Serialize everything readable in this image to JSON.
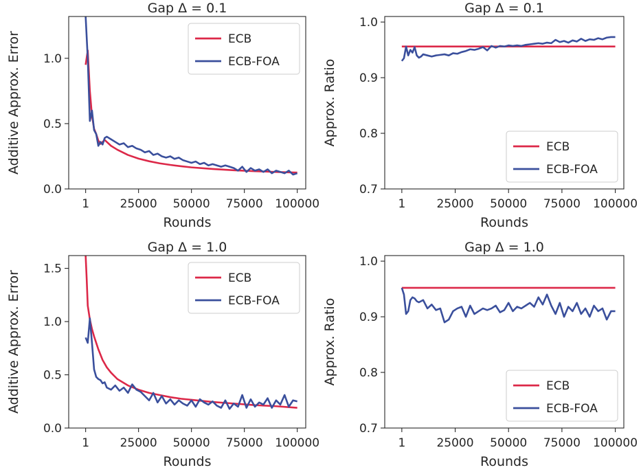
{
  "colors": {
    "ecb": "#dc2848",
    "ecb_foa": "#3a4f9c",
    "axis": "#262626"
  },
  "chart_data": [
    {
      "type": "line",
      "title": "Gap Δ = 0.1",
      "xlabel": "Rounds",
      "ylabel": "Additive Approx. Error",
      "xlim": [
        -8000,
        104000
      ],
      "ylim": [
        0,
        1.32
      ],
      "xticks": [
        1,
        25000,
        50000,
        75000,
        100000
      ],
      "xtick_labels": [
        "1",
        "25000",
        "50000",
        "75000",
        "100000"
      ],
      "yticks": [
        0.0,
        0.5,
        1.0
      ],
      "ytick_labels": [
        "0.0",
        "0.5",
        "1.0"
      ],
      "legend_position": "top-right",
      "series": [
        {
          "name": "ECB",
          "color": "#dc2848",
          "x": [
            1,
            1000,
            2000,
            3000,
            4000,
            5000,
            6000,
            7000,
            8000,
            9000,
            10000,
            12000,
            15000,
            20000,
            25000,
            30000,
            35000,
            40000,
            45000,
            50000,
            60000,
            70000,
            80000,
            90000,
            100000
          ],
          "y": [
            0.95,
            1.06,
            0.75,
            0.56,
            0.46,
            0.42,
            0.37,
            0.345,
            0.36,
            0.375,
            0.36,
            0.33,
            0.3,
            0.26,
            0.232,
            0.212,
            0.196,
            0.184,
            0.174,
            0.165,
            0.153,
            0.143,
            0.136,
            0.13,
            0.125
          ]
        },
        {
          "name": "ECB-FOA",
          "color": "#3a4f9c",
          "x": [
            1,
            1000,
            2000,
            3000,
            4000,
            5000,
            6000,
            7000,
            8000,
            9000,
            10000,
            12000,
            14000,
            16000,
            18000,
            20000,
            22000,
            24000,
            26000,
            28000,
            30000,
            32000,
            34000,
            36000,
            38000,
            40000,
            42000,
            44000,
            46000,
            48000,
            50000,
            52000,
            54000,
            56000,
            58000,
            60000,
            62000,
            64000,
            66000,
            68000,
            70000,
            72000,
            74000,
            76000,
            78000,
            80000,
            82000,
            84000,
            86000,
            88000,
            90000,
            92000,
            94000,
            96000,
            98000,
            100000
          ],
          "y": [
            1.32,
            1.0,
            0.52,
            0.6,
            0.45,
            0.42,
            0.33,
            0.36,
            0.34,
            0.39,
            0.4,
            0.38,
            0.36,
            0.34,
            0.35,
            0.32,
            0.33,
            0.31,
            0.3,
            0.28,
            0.29,
            0.26,
            0.27,
            0.25,
            0.24,
            0.25,
            0.23,
            0.24,
            0.22,
            0.21,
            0.2,
            0.21,
            0.19,
            0.2,
            0.18,
            0.19,
            0.18,
            0.17,
            0.18,
            0.17,
            0.16,
            0.14,
            0.17,
            0.13,
            0.16,
            0.14,
            0.15,
            0.13,
            0.15,
            0.12,
            0.14,
            0.13,
            0.12,
            0.14,
            0.11,
            0.12
          ]
        }
      ]
    },
    {
      "type": "line",
      "title": "Gap Δ = 0.1",
      "xlabel": "Rounds",
      "ylabel": "Approx. Ratio",
      "xlim": [
        -8000,
        104000
      ],
      "ylim": [
        0.7,
        1.01
      ],
      "xticks": [
        1,
        25000,
        50000,
        75000,
        100000
      ],
      "xtick_labels": [
        "1",
        "25000",
        "50000",
        "75000",
        "100000"
      ],
      "yticks": [
        0.7,
        0.8,
        0.9,
        1.0
      ],
      "ytick_labels": [
        "0.7",
        "0.8",
        "0.9",
        "1.0"
      ],
      "legend_position": "bottom-right",
      "series": [
        {
          "name": "ECB",
          "color": "#dc2848",
          "x": [
            1,
            100000
          ],
          "y": [
            0.956,
            0.956
          ]
        },
        {
          "name": "ECB-FOA",
          "color": "#3a4f9c",
          "x": [
            1,
            1000,
            2000,
            3000,
            4000,
            5000,
            6000,
            7000,
            8000,
            9000,
            10000,
            12000,
            14000,
            16000,
            18000,
            20000,
            22000,
            24000,
            26000,
            28000,
            30000,
            32000,
            34000,
            36000,
            38000,
            40000,
            42000,
            44000,
            46000,
            48000,
            50000,
            52000,
            54000,
            56000,
            58000,
            60000,
            62000,
            64000,
            66000,
            68000,
            70000,
            72000,
            74000,
            76000,
            78000,
            80000,
            82000,
            84000,
            86000,
            88000,
            90000,
            92000,
            94000,
            96000,
            98000,
            100000
          ],
          "y": [
            0.93,
            0.935,
            0.956,
            0.94,
            0.95,
            0.945,
            0.955,
            0.94,
            0.936,
            0.938,
            0.942,
            0.94,
            0.938,
            0.94,
            0.941,
            0.942,
            0.94,
            0.944,
            0.943,
            0.946,
            0.948,
            0.951,
            0.95,
            0.952,
            0.955,
            0.949,
            0.957,
            0.954,
            0.957,
            0.956,
            0.958,
            0.957,
            0.958,
            0.957,
            0.959,
            0.96,
            0.961,
            0.962,
            0.961,
            0.963,
            0.962,
            0.968,
            0.964,
            0.966,
            0.963,
            0.967,
            0.965,
            0.97,
            0.966,
            0.969,
            0.968,
            0.971,
            0.969,
            0.972,
            0.973,
            0.973
          ]
        }
      ]
    },
    {
      "type": "line",
      "title": "Gap Δ = 1.0",
      "xlabel": "Rounds",
      "ylabel": "Additive Approx. Error",
      "xlim": [
        -8000,
        104000
      ],
      "ylim": [
        0,
        1.62
      ],
      "xticks": [
        1,
        25000,
        50000,
        75000,
        100000
      ],
      "xtick_labels": [
        "1",
        "25000",
        "50000",
        "75000",
        "100000"
      ],
      "yticks": [
        0.0,
        0.5,
        1.0,
        1.5
      ],
      "ytick_labels": [
        "0.0",
        "0.5",
        "1.0",
        "1.5"
      ],
      "legend_position": "top-right",
      "series": [
        {
          "name": "ECB",
          "color": "#dc2848",
          "x": [
            1,
            500,
            1000,
            2000,
            3000,
            4000,
            5000,
            6000,
            8000,
            10000,
            12000,
            15000,
            20000,
            25000,
            30000,
            35000,
            40000,
            45000,
            50000,
            60000,
            70000,
            80000,
            90000,
            100000
          ],
          "y": [
            1.62,
            1.4,
            1.15,
            1.02,
            0.93,
            0.86,
            0.8,
            0.74,
            0.64,
            0.57,
            0.52,
            0.46,
            0.4,
            0.36,
            0.33,
            0.31,
            0.29,
            0.275,
            0.265,
            0.245,
            0.23,
            0.215,
            0.205,
            0.19
          ]
        },
        {
          "name": "ECB-FOA",
          "color": "#3a4f9c",
          "x": [
            1,
            1000,
            2000,
            3000,
            4000,
            5000,
            6000,
            7000,
            8000,
            9000,
            10000,
            12000,
            14000,
            16000,
            18000,
            20000,
            22000,
            24000,
            26000,
            28000,
            30000,
            32000,
            34000,
            36000,
            38000,
            40000,
            42000,
            44000,
            46000,
            48000,
            50000,
            52000,
            54000,
            56000,
            58000,
            60000,
            62000,
            64000,
            66000,
            68000,
            70000,
            72000,
            74000,
            76000,
            78000,
            80000,
            82000,
            84000,
            86000,
            88000,
            90000,
            92000,
            94000,
            96000,
            98000,
            100000
          ],
          "y": [
            0.85,
            0.8,
            1.03,
            0.8,
            0.55,
            0.48,
            0.46,
            0.45,
            0.42,
            0.43,
            0.38,
            0.36,
            0.4,
            0.35,
            0.38,
            0.33,
            0.41,
            0.36,
            0.34,
            0.3,
            0.26,
            0.33,
            0.24,
            0.3,
            0.23,
            0.27,
            0.22,
            0.26,
            0.23,
            0.21,
            0.26,
            0.2,
            0.27,
            0.24,
            0.22,
            0.25,
            0.21,
            0.19,
            0.26,
            0.18,
            0.23,
            0.2,
            0.31,
            0.19,
            0.27,
            0.2,
            0.24,
            0.22,
            0.28,
            0.19,
            0.26,
            0.22,
            0.31,
            0.2,
            0.26,
            0.25
          ]
        }
      ]
    },
    {
      "type": "line",
      "title": "Gap Δ = 1.0",
      "xlabel": "Rounds",
      "ylabel": "Approx. Ratio",
      "xlim": [
        -8000,
        104000
      ],
      "ylim": [
        0.7,
        1.01
      ],
      "xticks": [
        1,
        25000,
        50000,
        75000,
        100000
      ],
      "xtick_labels": [
        "1",
        "25000",
        "50000",
        "75000",
        "100000"
      ],
      "yticks": [
        0.7,
        0.8,
        0.9,
        1.0
      ],
      "ytick_labels": [
        "0.7",
        "0.8",
        "0.9",
        "1.0"
      ],
      "legend_position": "bottom-right",
      "series": [
        {
          "name": "ECB",
          "color": "#dc2848",
          "x": [
            1,
            100000
          ],
          "y": [
            0.952,
            0.952
          ]
        },
        {
          "name": "ECB-FOA",
          "color": "#3a4f9c",
          "x": [
            1,
            1000,
            2000,
            3000,
            4000,
            5000,
            6000,
            7000,
            8000,
            9000,
            10000,
            12000,
            14000,
            16000,
            18000,
            20000,
            22000,
            24000,
            26000,
            28000,
            30000,
            32000,
            34000,
            36000,
            38000,
            40000,
            42000,
            44000,
            46000,
            48000,
            50000,
            52000,
            54000,
            56000,
            58000,
            60000,
            62000,
            64000,
            66000,
            68000,
            70000,
            72000,
            74000,
            76000,
            78000,
            80000,
            82000,
            84000,
            86000,
            88000,
            90000,
            92000,
            94000,
            96000,
            98000,
            100000
          ],
          "y": [
            0.952,
            0.94,
            0.905,
            0.91,
            0.93,
            0.935,
            0.933,
            0.928,
            0.926,
            0.928,
            0.93,
            0.915,
            0.922,
            0.912,
            0.915,
            0.89,
            0.895,
            0.91,
            0.915,
            0.918,
            0.9,
            0.92,
            0.905,
            0.91,
            0.915,
            0.912,
            0.915,
            0.92,
            0.908,
            0.912,
            0.925,
            0.91,
            0.918,
            0.915,
            0.92,
            0.925,
            0.918,
            0.935,
            0.922,
            0.94,
            0.92,
            0.905,
            0.925,
            0.9,
            0.918,
            0.91,
            0.925,
            0.905,
            0.915,
            0.9,
            0.92,
            0.91,
            0.915,
            0.895,
            0.91,
            0.91
          ]
        }
      ]
    }
  ]
}
